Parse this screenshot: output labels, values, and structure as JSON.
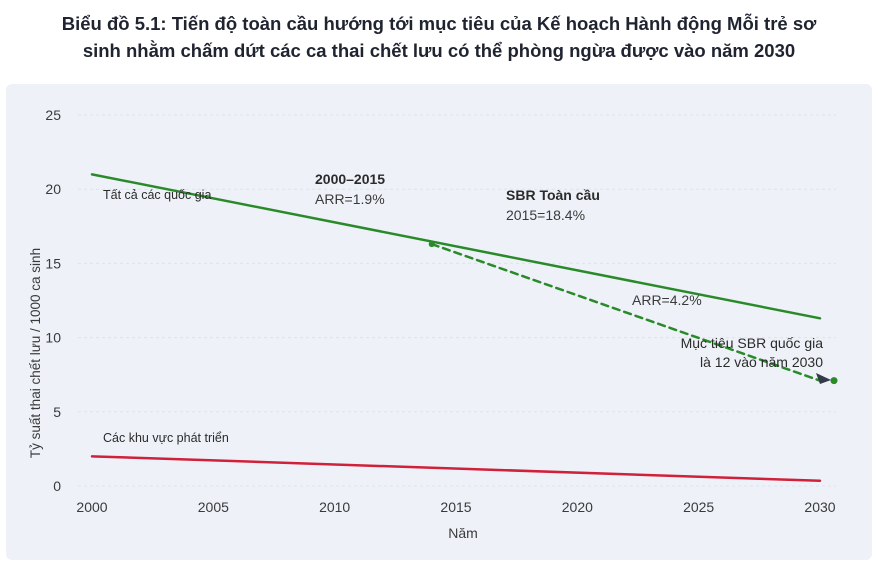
{
  "title_line1": "Biểu đồ 5.1: Tiến độ toàn cầu hướng tới mục tiêu của Kế hoạch Hành động Mỗi trẻ sơ",
  "title_line2": "sinh nhằm chấm dứt các ca thai chết lưu có thể phòng ngừa được vào năm 2030",
  "colors": {
    "global": "#2a8a2a",
    "developed": "#d0203a",
    "background": "#eef2f8"
  },
  "chart_data": {
    "type": "line",
    "xlabel": "Năm",
    "ylabel": "Tỷ suất thai chết lưu / 1000 ca sinh",
    "xlim": [
      2000,
      2030
    ],
    "ylim": [
      0,
      25
    ],
    "x_ticks": [
      2000,
      2005,
      2010,
      2015,
      2020,
      2025,
      2030
    ],
    "y_ticks": [
      0,
      5,
      10,
      15,
      20,
      25
    ],
    "grid": true,
    "series": [
      {
        "name": "Tất cả các quốc gia",
        "x": [
          2000,
          2030
        ],
        "y": [
          21.0,
          11.3
        ],
        "style": "solid"
      },
      {
        "name": "Các khu vực phát triển",
        "x": [
          2000,
          2030
        ],
        "y": [
          2.0,
          0.35
        ],
        "style": "solid"
      },
      {
        "name": "",
        "x": [
          2014,
          2030
        ],
        "y": [
          16.3,
          7.1
        ],
        "style": "dashed"
      }
    ],
    "annotations": {
      "period_bold": "2000–2015",
      "period_arr": "ARR=1.9%",
      "sbr_bold": "SBR Toàn cầu",
      "sbr_value": "2015=18.4%",
      "target_arr": "ARR=4.2%",
      "target_line1": "Mục tiêu SBR quốc gia",
      "target_line2": "là 12 vào năm 2030"
    }
  }
}
